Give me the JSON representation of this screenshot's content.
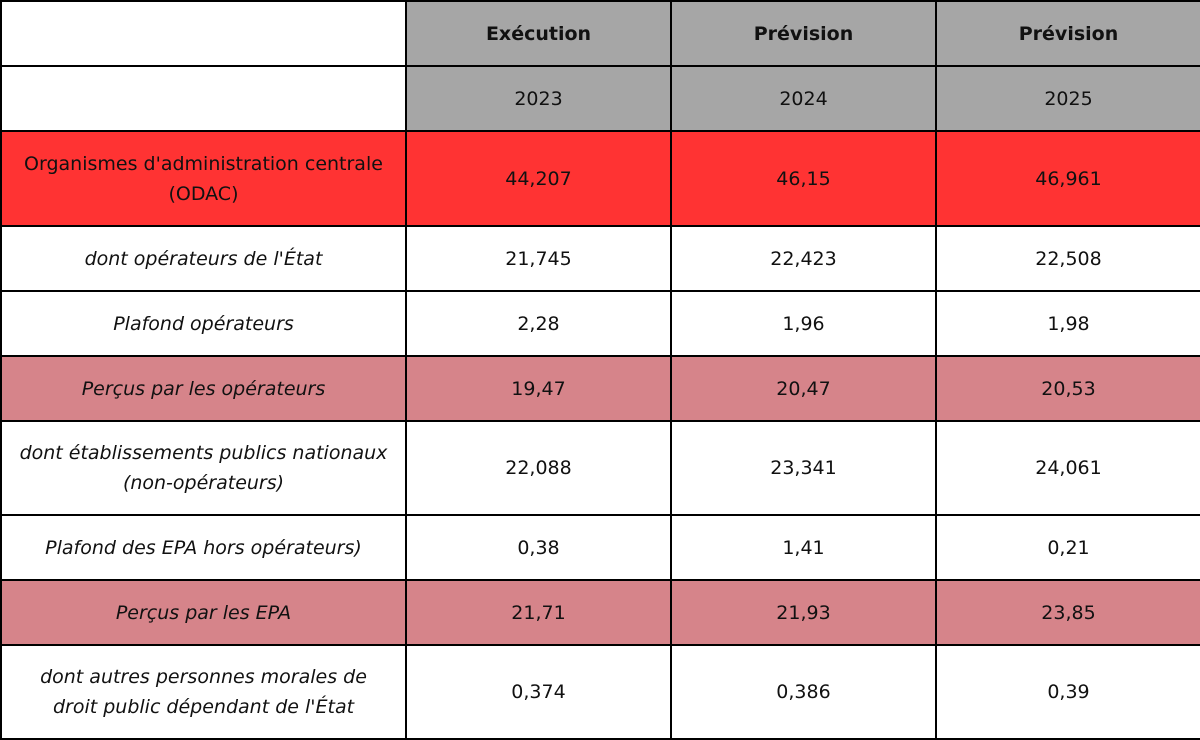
{
  "colors": {
    "header_grey": "#a6a6a6",
    "odac_red": "#ff3333",
    "percus_pink": "#d6848a",
    "border": "#000000"
  },
  "header": {
    "row1": [
      "",
      "Exécution",
      "Prévision",
      "Prévision"
    ],
    "row2": [
      "",
      "2023",
      "2024",
      "2025"
    ]
  },
  "rows": [
    {
      "label": "Organismes d'administration centrale (ODAC)",
      "values": [
        "44,207",
        "46,15",
        "46,961"
      ]
    },
    {
      "label": "dont opérateurs de l'État",
      "values": [
        "21,745",
        "22,423",
        "22,508"
      ]
    },
    {
      "label": "Plafond opérateurs",
      "values": [
        "2,28",
        "1,96",
        "1,98"
      ]
    },
    {
      "label": "Perçus par les opérateurs",
      "values": [
        "19,47",
        "20,47",
        "20,53"
      ]
    },
    {
      "label": "dont établissements publics nationaux (non-opérateurs)",
      "values": [
        "22,088",
        "23,341",
        "24,061"
      ]
    },
    {
      "label": "Plafond des EPA hors opérateurs)",
      "values": [
        "0,38",
        "1,41",
        "0,21"
      ]
    },
    {
      "label": "Perçus par les EPA",
      "values": [
        "21,71",
        "21,93",
        "23,85"
      ]
    },
    {
      "label": "dont autres personnes morales de droit public dépendant de l'État",
      "values": [
        "0,374",
        "0,386",
        "0,39"
      ]
    }
  ]
}
